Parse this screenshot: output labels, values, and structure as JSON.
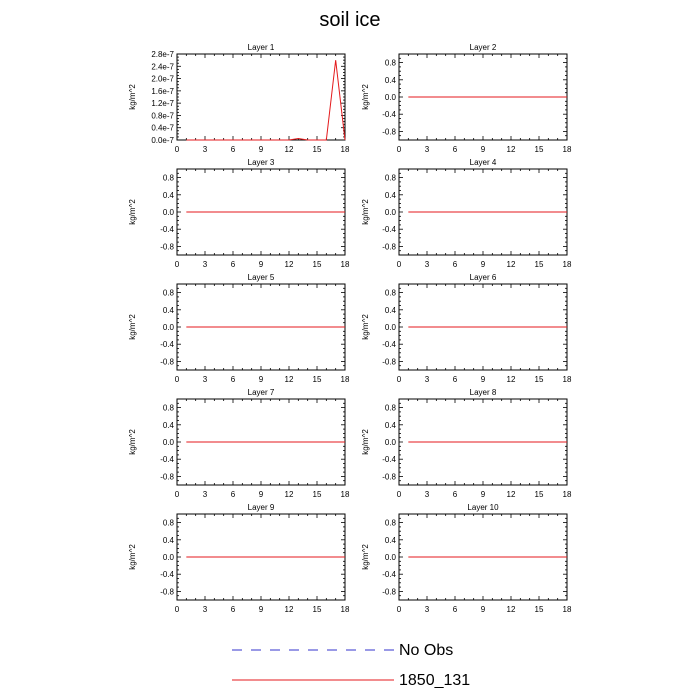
{
  "figure": {
    "title": "soil ice"
  },
  "legend": {
    "items": [
      {
        "label": "No Obs",
        "color": "#3333cc",
        "dash": "dashed"
      },
      {
        "label": "1850_131",
        "color": "#e41a1c",
        "dash": "solid"
      }
    ]
  },
  "chart_data": [
    {
      "type": "line",
      "title": "Layer 1",
      "ylabel": "kg/m^2",
      "xlim": [
        0,
        18
      ],
      "ylim": [
        0,
        2.8e-07
      ],
      "xticks": [
        0,
        3,
        6,
        9,
        12,
        15,
        18
      ],
      "xtick_labels": [
        "0",
        "3",
        "6",
        "9",
        "12",
        "15",
        "18"
      ],
      "yticks": [
        0,
        4e-08,
        8e-08,
        1.2e-07,
        1.6e-07,
        2e-07,
        2.4e-07,
        2.8e-07
      ],
      "ytick_labels": [
        "0.0e-7",
        "0.4e-7",
        "0.8e-7",
        "1.2e-7",
        "1.6e-7",
        "2.0e-7",
        "2.4e-7",
        "2.8e-7"
      ],
      "series": [
        {
          "name": "1850_131",
          "color": "#e41a1c",
          "x": [
            1,
            2,
            3,
            4,
            5,
            6,
            7,
            8,
            9,
            10,
            11,
            12,
            13,
            14,
            15,
            16,
            17,
            18
          ],
          "y": [
            0,
            0,
            0,
            0,
            0,
            0,
            0,
            0,
            0,
            0,
            0,
            0,
            5e-09,
            0,
            0,
            0,
            2.6e-07,
            0
          ]
        }
      ]
    },
    {
      "type": "line",
      "title": "Layer 2",
      "ylabel": "kg/m^2",
      "xlim": [
        0,
        18
      ],
      "ylim": [
        -1,
        1
      ],
      "xticks": [
        0,
        3,
        6,
        9,
        12,
        15,
        18
      ],
      "xtick_labels": [
        "0",
        "3",
        "6",
        "9",
        "12",
        "15",
        "18"
      ],
      "yticks": [
        -0.8,
        -0.4,
        0,
        0.4,
        0.8
      ],
      "ytick_labels": [
        "-0.8",
        "-0.4",
        "0.0",
        "0.4",
        "0.8"
      ],
      "series": [
        {
          "name": "1850_131",
          "color": "#e41a1c",
          "x": [
            1,
            18
          ],
          "y": [
            0,
            0
          ]
        }
      ]
    },
    {
      "type": "line",
      "title": "Layer 3",
      "ylabel": "kg/m^2",
      "xlim": [
        0,
        18
      ],
      "ylim": [
        -1,
        1
      ],
      "xticks": [
        0,
        3,
        6,
        9,
        12,
        15,
        18
      ],
      "xtick_labels": [
        "0",
        "3",
        "6",
        "9",
        "12",
        "15",
        "18"
      ],
      "yticks": [
        -0.8,
        -0.4,
        0,
        0.4,
        0.8
      ],
      "ytick_labels": [
        "-0.8",
        "-0.4",
        "0.0",
        "0.4",
        "0.8"
      ],
      "series": [
        {
          "name": "1850_131",
          "color": "#e41a1c",
          "x": [
            1,
            18
          ],
          "y": [
            0,
            0
          ]
        }
      ]
    },
    {
      "type": "line",
      "title": "Layer 4",
      "ylabel": "kg/m^2",
      "xlim": [
        0,
        18
      ],
      "ylim": [
        -1,
        1
      ],
      "xticks": [
        0,
        3,
        6,
        9,
        12,
        15,
        18
      ],
      "xtick_labels": [
        "0",
        "3",
        "6",
        "9",
        "12",
        "15",
        "18"
      ],
      "yticks": [
        -0.8,
        -0.4,
        0,
        0.4,
        0.8
      ],
      "ytick_labels": [
        "-0.8",
        "-0.4",
        "0.0",
        "0.4",
        "0.8"
      ],
      "series": [
        {
          "name": "1850_131",
          "color": "#e41a1c",
          "x": [
            1,
            18
          ],
          "y": [
            0,
            0
          ]
        }
      ]
    },
    {
      "type": "line",
      "title": "Layer 5",
      "ylabel": "kg/m^2",
      "xlim": [
        0,
        18
      ],
      "ylim": [
        -1,
        1
      ],
      "xticks": [
        0,
        3,
        6,
        9,
        12,
        15,
        18
      ],
      "xtick_labels": [
        "0",
        "3",
        "6",
        "9",
        "12",
        "15",
        "18"
      ],
      "yticks": [
        -0.8,
        -0.4,
        0,
        0.4,
        0.8
      ],
      "ytick_labels": [
        "-0.8",
        "-0.4",
        "0.0",
        "0.4",
        "0.8"
      ],
      "series": [
        {
          "name": "1850_131",
          "color": "#e41a1c",
          "x": [
            1,
            18
          ],
          "y": [
            0,
            0
          ]
        }
      ]
    },
    {
      "type": "line",
      "title": "Layer 6",
      "ylabel": "kg/m^2",
      "xlim": [
        0,
        18
      ],
      "ylim": [
        -1,
        1
      ],
      "xticks": [
        0,
        3,
        6,
        9,
        12,
        15,
        18
      ],
      "xtick_labels": [
        "0",
        "3",
        "6",
        "9",
        "12",
        "15",
        "18"
      ],
      "yticks": [
        -0.8,
        -0.4,
        0,
        0.4,
        0.8
      ],
      "ytick_labels": [
        "-0.8",
        "-0.4",
        "0.0",
        "0.4",
        "0.8"
      ],
      "series": [
        {
          "name": "1850_131",
          "color": "#e41a1c",
          "x": [
            1,
            18
          ],
          "y": [
            0,
            0
          ]
        }
      ]
    },
    {
      "type": "line",
      "title": "Layer 7",
      "ylabel": "kg/m^2",
      "xlim": [
        0,
        18
      ],
      "ylim": [
        -1,
        1
      ],
      "xticks": [
        0,
        3,
        6,
        9,
        12,
        15,
        18
      ],
      "xtick_labels": [
        "0",
        "3",
        "6",
        "9",
        "12",
        "15",
        "18"
      ],
      "yticks": [
        -0.8,
        -0.4,
        0,
        0.4,
        0.8
      ],
      "ytick_labels": [
        "-0.8",
        "-0.4",
        "0.0",
        "0.4",
        "0.8"
      ],
      "series": [
        {
          "name": "1850_131",
          "color": "#e41a1c",
          "x": [
            1,
            18
          ],
          "y": [
            0,
            0
          ]
        }
      ]
    },
    {
      "type": "line",
      "title": "Layer 8",
      "ylabel": "kg/m^2",
      "xlim": [
        0,
        18
      ],
      "ylim": [
        -1,
        1
      ],
      "xticks": [
        0,
        3,
        6,
        9,
        12,
        15,
        18
      ],
      "xtick_labels": [
        "0",
        "3",
        "6",
        "9",
        "12",
        "15",
        "18"
      ],
      "yticks": [
        -0.8,
        -0.4,
        0,
        0.4,
        0.8
      ],
      "ytick_labels": [
        "-0.8",
        "-0.4",
        "0.0",
        "0.4",
        "0.8"
      ],
      "series": [
        {
          "name": "1850_131",
          "color": "#e41a1c",
          "x": [
            1,
            18
          ],
          "y": [
            0,
            0
          ]
        }
      ]
    },
    {
      "type": "line",
      "title": "Layer 9",
      "ylabel": "kg/m^2",
      "xlim": [
        0,
        18
      ],
      "ylim": [
        -1,
        1
      ],
      "xticks": [
        0,
        3,
        6,
        9,
        12,
        15,
        18
      ],
      "xtick_labels": [
        "0",
        "3",
        "6",
        "9",
        "12",
        "15",
        "18"
      ],
      "yticks": [
        -0.8,
        -0.4,
        0,
        0.4,
        0.8
      ],
      "ytick_labels": [
        "-0.8",
        "-0.4",
        "0.0",
        "0.4",
        "0.8"
      ],
      "series": [
        {
          "name": "1850_131",
          "color": "#e41a1c",
          "x": [
            1,
            18
          ],
          "y": [
            0,
            0
          ]
        }
      ]
    },
    {
      "type": "line",
      "title": "Layer 10",
      "ylabel": "kg/m^2",
      "xlim": [
        0,
        18
      ],
      "ylim": [
        -1,
        1
      ],
      "xticks": [
        0,
        3,
        6,
        9,
        12,
        15,
        18
      ],
      "xtick_labels": [
        "0",
        "3",
        "6",
        "9",
        "12",
        "15",
        "18"
      ],
      "yticks": [
        -0.8,
        -0.4,
        0,
        0.4,
        0.8
      ],
      "ytick_labels": [
        "-0.8",
        "-0.4",
        "0.0",
        "0.4",
        "0.8"
      ],
      "series": [
        {
          "name": "1850_131",
          "color": "#e41a1c",
          "x": [
            1,
            18
          ],
          "y": [
            0,
            0
          ]
        }
      ]
    }
  ]
}
